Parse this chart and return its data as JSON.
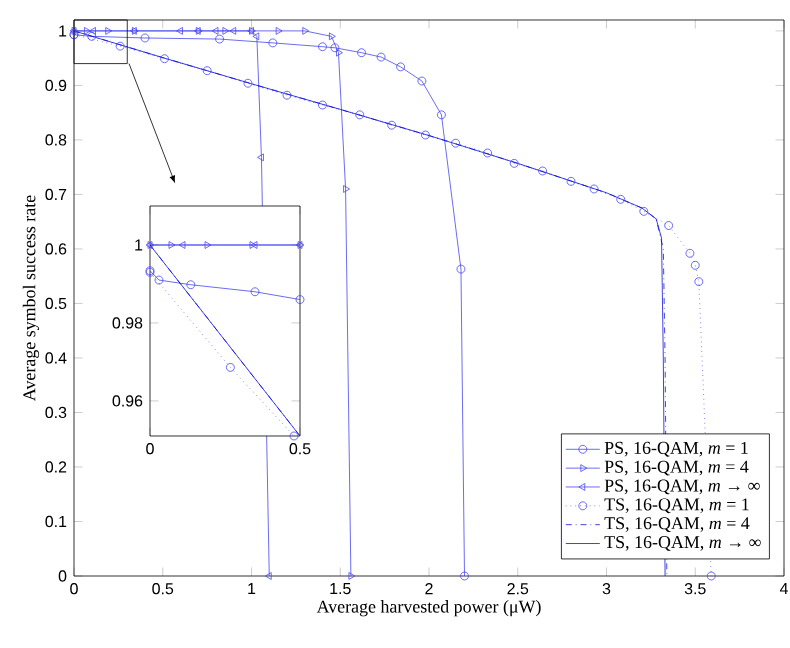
{
  "chart_data": [
    {
      "type": "line",
      "xlabel": "Average harvested power (μW)",
      "ylabel": "Average symbol success rate",
      "xlim": [
        0,
        4
      ],
      "ylim": [
        0,
        1.02
      ],
      "xticks": [
        0,
        0.5,
        1,
        1.5,
        2,
        2.5,
        3,
        3.5,
        4
      ],
      "yticks": [
        0,
        0.1,
        0.2,
        0.3,
        0.4,
        0.5,
        0.6,
        0.7,
        0.8,
        0.9,
        1
      ],
      "legend": "bottom right",
      "grid": false,
      "series": [
        {
          "name": "PS, 16-QAM, *m* = 1",
          "color": "#4646f0",
          "marker": "circle",
          "line_style": "solid",
          "x": [
            0,
            0.1,
            0.4,
            0.82,
            1.12,
            1.4,
            1.47,
            1.62,
            1.73,
            1.84,
            1.96,
            2.07,
            2.18,
            2.2
          ],
          "values": [
            0.993,
            0.99,
            0.987,
            0.985,
            0.978,
            0.971,
            0.969,
            0.96,
            0.952,
            0.934,
            0.908,
            0.846,
            0.563,
            0
          ]
        },
        {
          "name": "PS, 16-QAM, *m* = 4",
          "color": "#4646f0",
          "marker": "triangle right",
          "line_style": "solid",
          "x": [
            0,
            0.07,
            0.19,
            0.34,
            0.7,
            0.85,
            1.0,
            1.15,
            1.3,
            1.45,
            1.49,
            1.53,
            1.56
          ],
          "values": [
            1,
            1,
            1,
            1,
            1,
            1,
            1,
            1,
            1,
            0.99,
            0.96,
            0.71,
            0
          ]
        },
        {
          "name": "PS, 16-QAM, *m* → ∞",
          "color": "#4646f0",
          "marker": "triangle left",
          "line_style": "solid",
          "x": [
            0,
            0.11,
            0.34,
            0.6,
            0.7,
            0.8,
            0.9,
            1.0,
            1.03,
            1.056,
            1.1
          ],
          "values": [
            1,
            1,
            1,
            1,
            1,
            1,
            1,
            1,
            0.99,
            0.768,
            0
          ]
        },
        {
          "name": "TS, 16-QAM, *m* = 1",
          "color": "#4646f0",
          "marker": "circle",
          "line_style": "dotted",
          "x": [
            0,
            0.26,
            0.51,
            0.75,
            0.98,
            1.2,
            1.4,
            1.61,
            1.79,
            1.98,
            2.15,
            2.33,
            2.48,
            2.64,
            2.8,
            2.93,
            3.08,
            3.21,
            3.35,
            3.47,
            3.5,
            3.52,
            3.59
          ],
          "values": [
            0.993,
            0.972,
            0.949,
            0.927,
            0.904,
            0.882,
            0.864,
            0.846,
            0.827,
            0.809,
            0.794,
            0.776,
            0.757,
            0.743,
            0.724,
            0.71,
            0.691,
            0.669,
            0.643,
            0.592,
            0.57,
            0.54,
            0
          ]
        },
        {
          "name": "TS, 16-QAM, *m* = 4",
          "color": "#1010e0",
          "marker": "none",
          "line_style": "dashdot",
          "x": [
            0,
            0.5,
            1,
            1.5,
            2,
            2.5,
            3,
            3.2,
            3.28,
            3.32,
            3.33,
            3.34
          ],
          "values": [
            1,
            0.951,
            0.903,
            0.856,
            0.808,
            0.757,
            0.703,
            0.675,
            0.655,
            0.6,
            0.4,
            0
          ]
        },
        {
          "name": "TS, 16-QAM, *m* → ∞",
          "color": "#1010e0",
          "marker": "none",
          "line_style": "solid",
          "x": [
            0,
            0.5,
            1,
            1.5,
            2,
            2.5,
            3,
            3.2,
            3.28,
            3.31,
            3.32,
            3.33
          ],
          "values": [
            1,
            0.951,
            0.903,
            0.856,
            0.808,
            0.757,
            0.703,
            0.675,
            0.655,
            0.62,
            0.4,
            0
          ]
        }
      ]
    },
    {
      "type": "line",
      "xlim": [
        0,
        0.5
      ],
      "ylim": [
        0.951,
        1.01
      ],
      "xticks": [
        0,
        0.5
      ],
      "yticks": [
        0.96,
        0.98,
        1
      ],
      "grid": false,
      "series": [
        {
          "color": "#4646f0",
          "marker": "circle",
          "line_style": "solid",
          "x": [
            0,
            0.03,
            0.136,
            0.35,
            0.5
          ],
          "values": [
            0.9934,
            0.991,
            0.9898,
            0.988,
            0.986
          ]
        },
        {
          "color": "#4646f0",
          "marker": "triangle right",
          "line_style": "solid",
          "x": [
            0,
            0.07,
            0.19,
            0.34,
            0.5
          ],
          "values": [
            1,
            1,
            1,
            1,
            1
          ]
        },
        {
          "color": "#4646f0",
          "marker": "triangle left",
          "line_style": "solid",
          "x": [
            0,
            0.11,
            0.35,
            0.5
          ],
          "values": [
            1,
            1,
            1,
            1
          ]
        },
        {
          "color": "#4646f0",
          "marker": "circle",
          "line_style": "dotted",
          "x": [
            0,
            0.268,
            0.48
          ],
          "values": [
            0.993,
            0.9686,
            0.951
          ]
        },
        {
          "color": "#1010e0",
          "marker": "none",
          "line_style": "dashdot",
          "x": [
            0,
            0.5
          ],
          "values": [
            1,
            0.951
          ]
        },
        {
          "color": "#1010e0",
          "marker": "none",
          "line_style": "solid",
          "x": [
            0,
            0.5
          ],
          "values": [
            1,
            0.951
          ]
        }
      ]
    }
  ]
}
